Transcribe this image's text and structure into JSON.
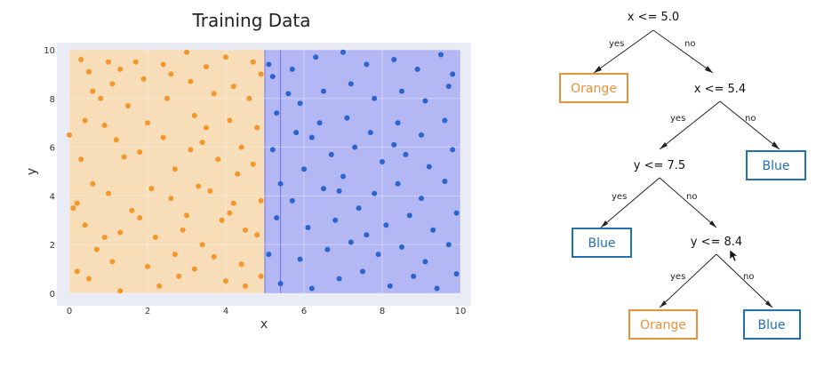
{
  "chart_data": {
    "type": "scatter",
    "title": "Training Data",
    "xlabel": "x",
    "ylabel": "y",
    "xlim": [
      0,
      10
    ],
    "ylim": [
      0,
      10
    ],
    "xticks": [
      "0",
      "2",
      "4",
      "6",
      "8",
      "10"
    ],
    "yticks": [
      "0",
      "2",
      "4",
      "6",
      "8",
      "10"
    ],
    "grid": true,
    "colors": {
      "orange_points": "#f5962a",
      "blue_points": "#2b63cf",
      "orange_region": "#f7ddb8",
      "blue_region": "#b3b8f5",
      "plot_background": "#e9ebf5"
    },
    "regions": [
      {
        "class": "Orange",
        "x": [
          0,
          5.0
        ],
        "y": [
          0,
          10
        ]
      },
      {
        "class": "Blue",
        "x": [
          5.0,
          10
        ],
        "y": [
          0,
          10
        ]
      }
    ],
    "series": [
      {
        "name": "Orange",
        "color": "#f5962a",
        "points": [
          [
            0.0,
            6.5
          ],
          [
            0.2,
            3.7
          ],
          [
            0.3,
            9.6
          ],
          [
            0.5,
            9.1
          ],
          [
            0.4,
            7.1
          ],
          [
            0.3,
            5.5
          ],
          [
            0.6,
            4.5
          ],
          [
            0.8,
            8.0
          ],
          [
            0.9,
            6.9
          ],
          [
            0.1,
            3.5
          ],
          [
            0.4,
            2.8
          ],
          [
            0.7,
            1.8
          ],
          [
            0.2,
            0.9
          ],
          [
            0.5,
            0.6
          ],
          [
            1.0,
            9.5
          ],
          [
            1.1,
            8.6
          ],
          [
            1.3,
            9.2
          ],
          [
            1.5,
            7.7
          ],
          [
            1.2,
            6.3
          ],
          [
            1.4,
            5.6
          ],
          [
            1.0,
            4.1
          ],
          [
            1.6,
            3.4
          ],
          [
            1.3,
            2.5
          ],
          [
            1.1,
            1.3
          ],
          [
            1.3,
            0.1
          ],
          [
            1.7,
            9.5
          ],
          [
            1.9,
            8.8
          ],
          [
            2.0,
            7.0
          ],
          [
            1.8,
            5.8
          ],
          [
            2.1,
            4.3
          ],
          [
            1.8,
            3.1
          ],
          [
            2.2,
            2.3
          ],
          [
            2.0,
            1.1
          ],
          [
            2.3,
            0.3
          ],
          [
            2.4,
            9.4
          ],
          [
            2.5,
            8.0
          ],
          [
            2.4,
            6.4
          ],
          [
            2.7,
            5.1
          ],
          [
            2.6,
            3.9
          ],
          [
            2.9,
            2.6
          ],
          [
            2.7,
            1.6
          ],
          [
            2.8,
            0.7
          ],
          [
            3.0,
            9.9
          ],
          [
            3.1,
            8.7
          ],
          [
            3.2,
            7.3
          ],
          [
            3.1,
            5.9
          ],
          [
            3.3,
            4.4
          ],
          [
            3.0,
            3.2
          ],
          [
            3.4,
            2.0
          ],
          [
            3.2,
            1.0
          ],
          [
            3.5,
            9.3
          ],
          [
            3.7,
            8.2
          ],
          [
            3.5,
            6.8
          ],
          [
            3.8,
            5.5
          ],
          [
            3.6,
            4.2
          ],
          [
            3.9,
            3.0
          ],
          [
            3.7,
            1.5
          ],
          [
            4.0,
            0.5
          ],
          [
            4.0,
            9.7
          ],
          [
            4.2,
            8.5
          ],
          [
            4.1,
            7.1
          ],
          [
            4.4,
            6.0
          ],
          [
            4.3,
            4.9
          ],
          [
            4.2,
            3.7
          ],
          [
            4.5,
            2.6
          ],
          [
            4.4,
            1.2
          ],
          [
            4.5,
            0.3
          ],
          [
            4.7,
            9.5
          ],
          [
            4.6,
            8.0
          ],
          [
            4.8,
            6.8
          ],
          [
            4.7,
            5.3
          ],
          [
            4.9,
            3.8
          ],
          [
            4.8,
            2.4
          ],
          [
            4.9,
            0.7
          ],
          [
            4.9,
            9.0
          ],
          [
            0.6,
            8.3
          ],
          [
            0.9,
            2.3
          ],
          [
            2.6,
            9.0
          ],
          [
            3.4,
            6.2
          ],
          [
            4.1,
            3.3
          ]
        ]
      },
      {
        "name": "Blue",
        "color": "#2b63cf",
        "points": [
          [
            5.1,
            9.4
          ],
          [
            5.2,
            8.9
          ],
          [
            5.3,
            7.4
          ],
          [
            5.2,
            5.9
          ],
          [
            5.4,
            4.5
          ],
          [
            5.3,
            3.1
          ],
          [
            5.1,
            1.6
          ],
          [
            5.4,
            0.4
          ],
          [
            5.7,
            9.2
          ],
          [
            5.9,
            7.8
          ],
          [
            5.8,
            6.6
          ],
          [
            6.0,
            5.1
          ],
          [
            5.7,
            3.8
          ],
          [
            6.1,
            2.7
          ],
          [
            5.9,
            1.4
          ],
          [
            6.2,
            0.2
          ],
          [
            6.3,
            9.7
          ],
          [
            6.5,
            8.3
          ],
          [
            6.4,
            7.0
          ],
          [
            6.7,
            5.7
          ],
          [
            6.5,
            4.3
          ],
          [
            6.8,
            3.0
          ],
          [
            6.6,
            1.8
          ],
          [
            6.9,
            0.6
          ],
          [
            7.0,
            9.9
          ],
          [
            7.2,
            8.6
          ],
          [
            7.1,
            7.2
          ],
          [
            7.3,
            6.0
          ],
          [
            7.0,
            4.8
          ],
          [
            7.4,
            3.5
          ],
          [
            7.2,
            2.1
          ],
          [
            7.5,
            0.9
          ],
          [
            7.6,
            9.4
          ],
          [
            7.8,
            8.0
          ],
          [
            7.7,
            6.6
          ],
          [
            8.0,
            5.4
          ],
          [
            7.8,
            4.1
          ],
          [
            8.1,
            2.8
          ],
          [
            7.9,
            1.6
          ],
          [
            8.2,
            0.3
          ],
          [
            8.3,
            9.6
          ],
          [
            8.5,
            8.3
          ],
          [
            8.4,
            7.0
          ],
          [
            8.6,
            5.7
          ],
          [
            8.4,
            4.5
          ],
          [
            8.7,
            3.2
          ],
          [
            8.5,
            1.9
          ],
          [
            8.8,
            0.7
          ],
          [
            8.9,
            9.2
          ],
          [
            9.1,
            7.9
          ],
          [
            9.0,
            6.5
          ],
          [
            9.2,
            5.2
          ],
          [
            9.0,
            3.9
          ],
          [
            9.3,
            2.6
          ],
          [
            9.1,
            1.3
          ],
          [
            9.4,
            0.2
          ],
          [
            9.5,
            9.8
          ],
          [
            9.7,
            8.5
          ],
          [
            9.6,
            7.1
          ],
          [
            9.8,
            5.9
          ],
          [
            9.6,
            4.6
          ],
          [
            9.9,
            3.3
          ],
          [
            9.7,
            2.0
          ],
          [
            9.9,
            0.8
          ],
          [
            9.8,
            9.0
          ],
          [
            5.6,
            8.2
          ],
          [
            6.2,
            6.4
          ],
          [
            6.9,
            4.2
          ],
          [
            7.6,
            2.4
          ],
          [
            8.3,
            6.1
          ]
        ]
      }
    ]
  },
  "tree": {
    "root": {
      "label": "x <= 5.0"
    },
    "node2": {
      "label": "x <= 5.4"
    },
    "node3": {
      "label": "y <= 7.5"
    },
    "node4": {
      "label": "y <= 8.4"
    },
    "leaves": {
      "leaf1": {
        "label": "Orange",
        "color": "#e8903a"
      },
      "leaf2": {
        "label": "Blue",
        "color": "#2270b4"
      },
      "leaf3": {
        "label": "Blue",
        "color": "#2270b4"
      },
      "leaf4": {
        "label": "Orange",
        "color": "#e8903a"
      },
      "leaf5": {
        "label": "Blue",
        "color": "#2270b4"
      }
    },
    "edges": {
      "yes": "yes",
      "no": "no"
    }
  }
}
